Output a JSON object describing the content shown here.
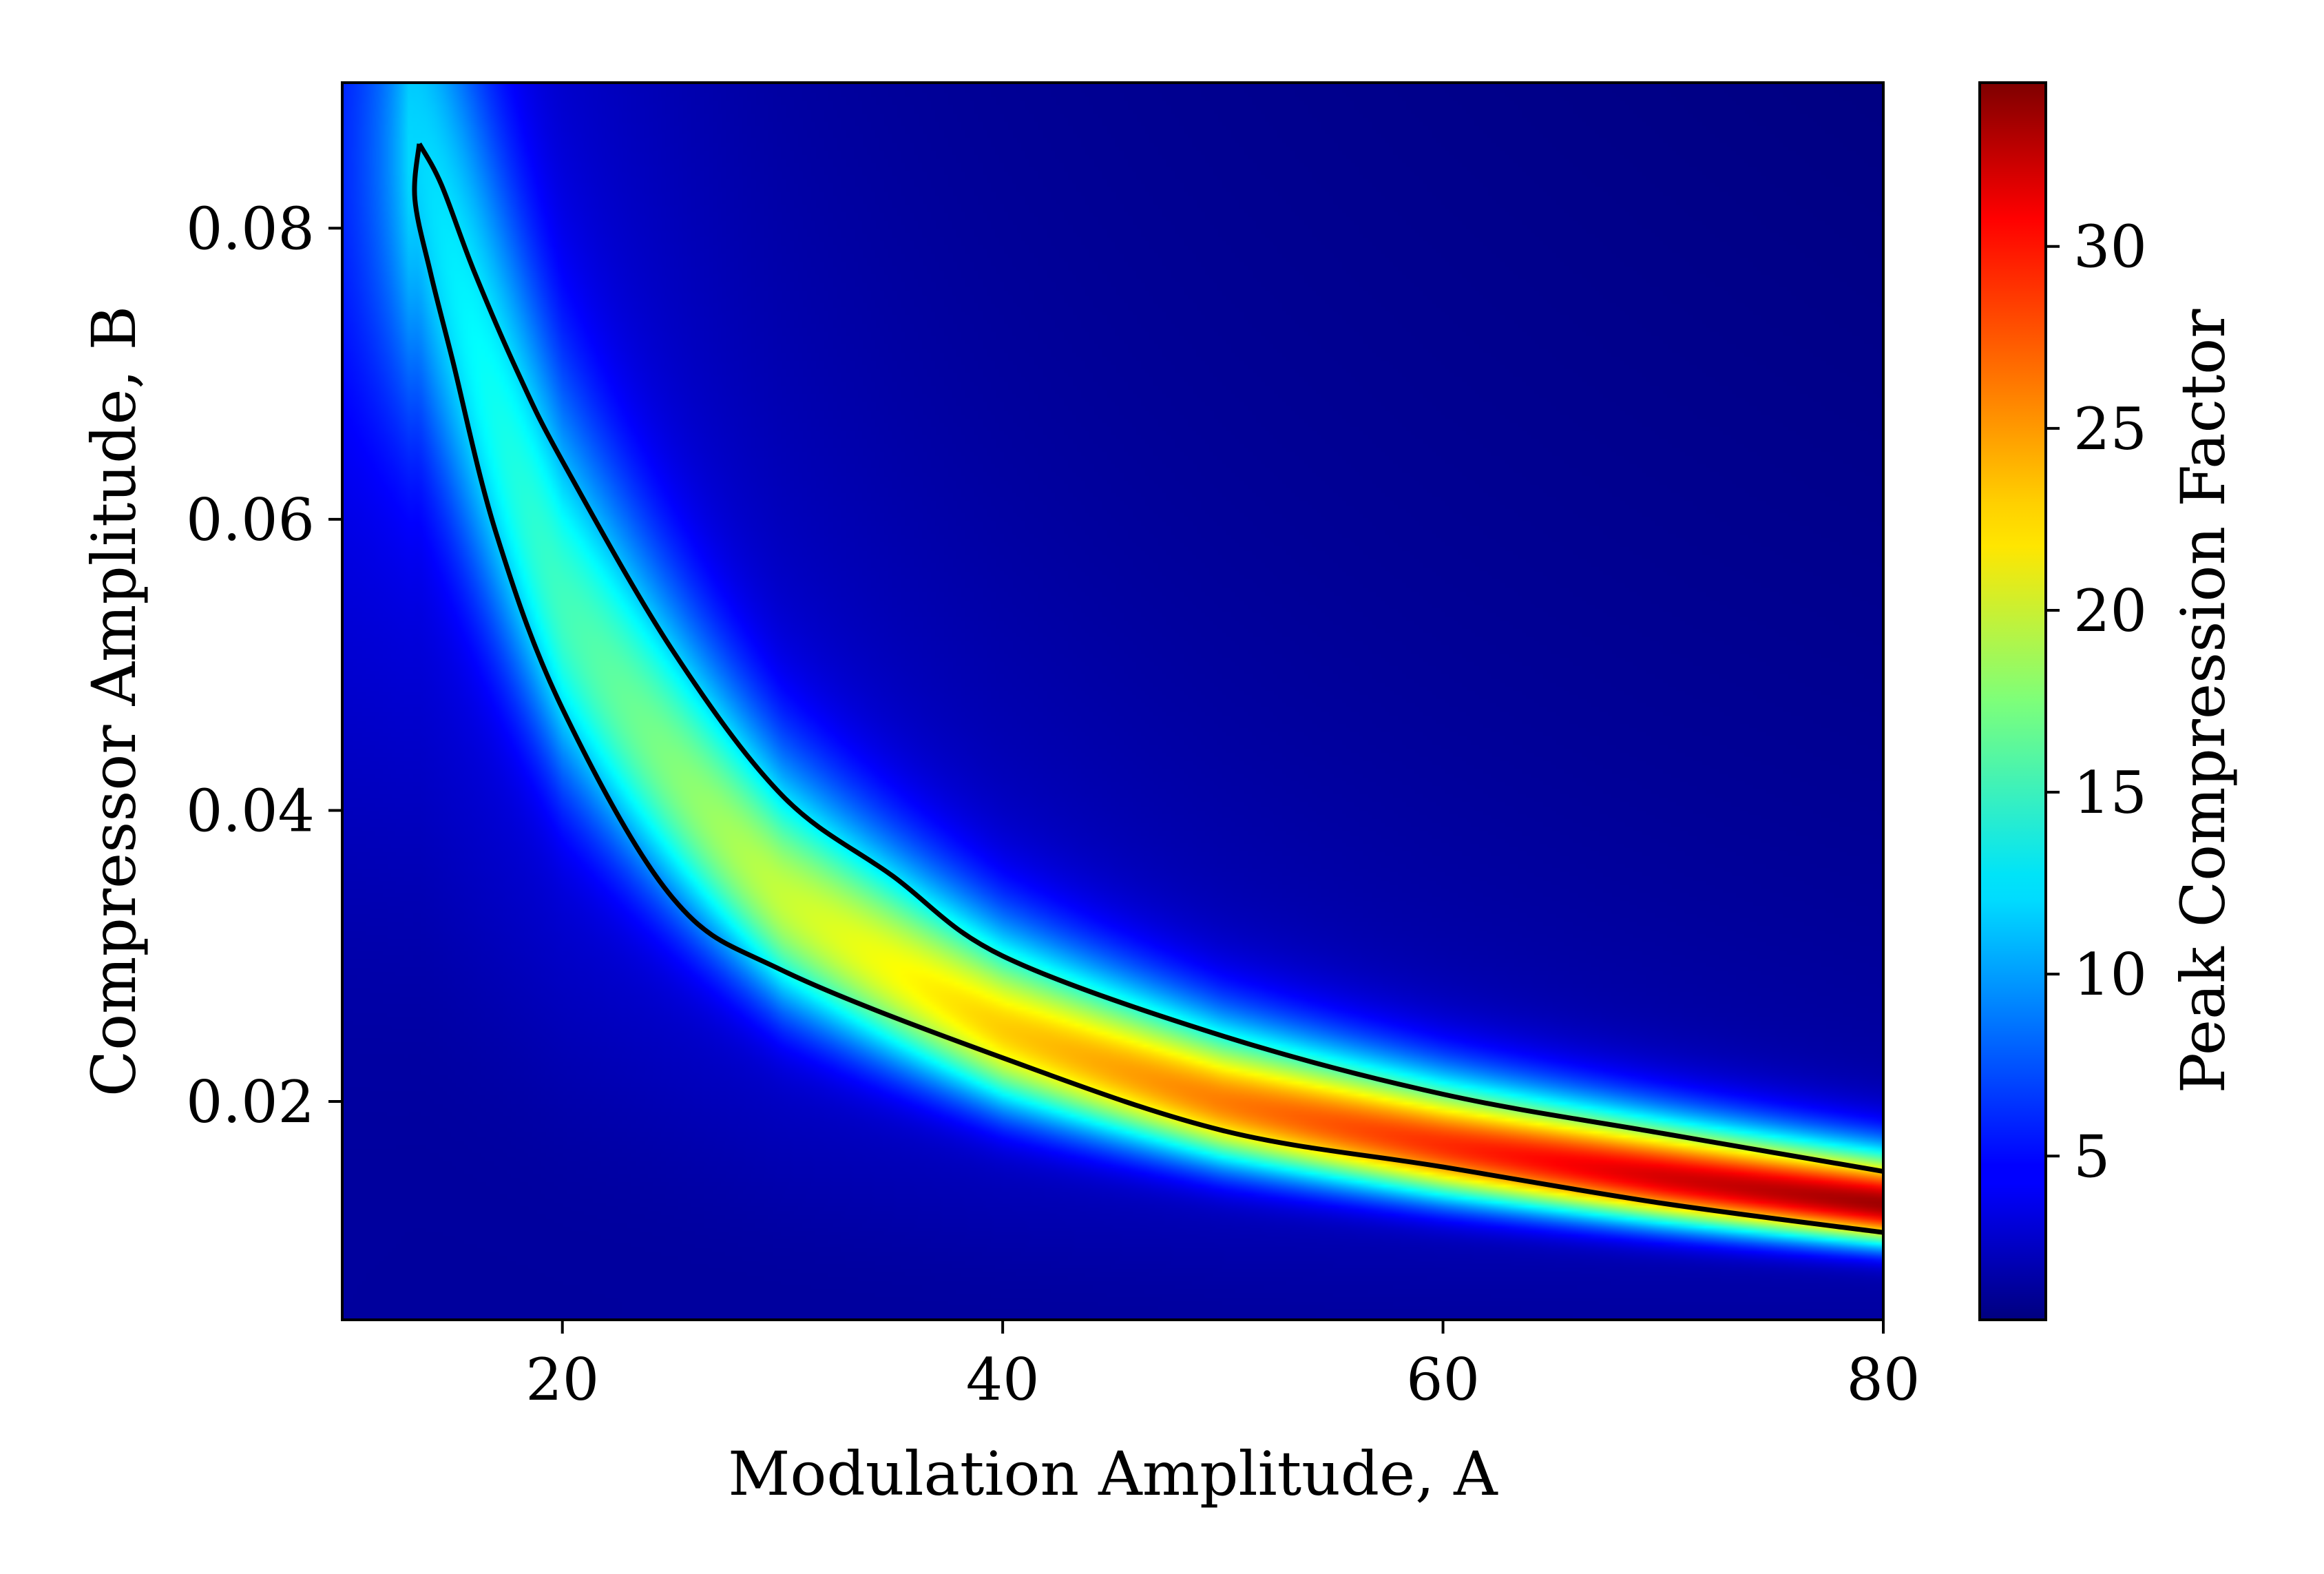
{
  "chart_data": {
    "type": "heatmap",
    "title": "",
    "xlabel": "Modulation Amplitude, A",
    "ylabel": "Compressor Amplitude, B",
    "colorbar_label": "Peak Compression Factor",
    "colormap": "jet",
    "xlim": [
      10,
      80
    ],
    "ylim": [
      0.005,
      0.09
    ],
    "clim": [
      0.5,
      34.5
    ],
    "x_ticks": [
      20,
      40,
      60,
      80
    ],
    "x_tick_labels": [
      "20",
      "40",
      "60",
      "80"
    ],
    "y_ticks": [
      0.02,
      0.04,
      0.06,
      0.08
    ],
    "y_tick_labels": [
      "0.02",
      "0.04",
      "0.06",
      "0.08"
    ],
    "colorbar_ticks": [
      5,
      10,
      15,
      20,
      25,
      30
    ],
    "colorbar_tick_labels": [
      "5",
      "10",
      "15",
      "20",
      "25",
      "30"
    ],
    "ridge": {
      "description_points": [
        {
          "A": 13.5,
          "B": 0.085,
          "value": 9
        },
        {
          "A": 20,
          "B": 0.054,
          "value": 13
        },
        {
          "A": 30,
          "B": 0.034,
          "value": 18
        },
        {
          "A": 40,
          "B": 0.025,
          "value": 22
        },
        {
          "A": 50,
          "B": 0.02,
          "value": 25
        },
        {
          "A": 60,
          "B": 0.017,
          "value": 28
        },
        {
          "A": 70,
          "B": 0.0148,
          "value": 31
        },
        {
          "A": 80,
          "B": 0.013,
          "value": 33
        }
      ],
      "background_value": 1.5
    },
    "contour": {
      "color": "#000000",
      "upper_boundary": [
        {
          "A": 13.5,
          "B": 0.0858
        },
        {
          "A": 14.5,
          "B": 0.083
        },
        {
          "A": 16,
          "B": 0.077
        },
        {
          "A": 18,
          "B": 0.07
        },
        {
          "A": 20,
          "B": 0.064
        },
        {
          "A": 25,
          "B": 0.051
        },
        {
          "A": 30,
          "B": 0.041
        },
        {
          "A": 35,
          "B": 0.0355
        },
        {
          "A": 40,
          "B": 0.03
        },
        {
          "A": 50,
          "B": 0.0245
        },
        {
          "A": 60,
          "B": 0.0205
        },
        {
          "A": 70,
          "B": 0.0178
        },
        {
          "A": 80,
          "B": 0.0152
        }
      ],
      "lower_boundary": [
        {
          "A": 13.5,
          "B": 0.0858
        },
        {
          "A": 13.3,
          "B": 0.082
        },
        {
          "A": 14,
          "B": 0.077
        },
        {
          "A": 15,
          "B": 0.071
        },
        {
          "A": 17,
          "B": 0.059
        },
        {
          "A": 20,
          "B": 0.047
        },
        {
          "A": 25,
          "B": 0.034
        },
        {
          "A": 30,
          "B": 0.029
        },
        {
          "A": 40,
          "B": 0.023
        },
        {
          "A": 50,
          "B": 0.018
        },
        {
          "A": 60,
          "B": 0.0155
        },
        {
          "A": 70,
          "B": 0.013
        },
        {
          "A": 80,
          "B": 0.011
        }
      ]
    }
  }
}
